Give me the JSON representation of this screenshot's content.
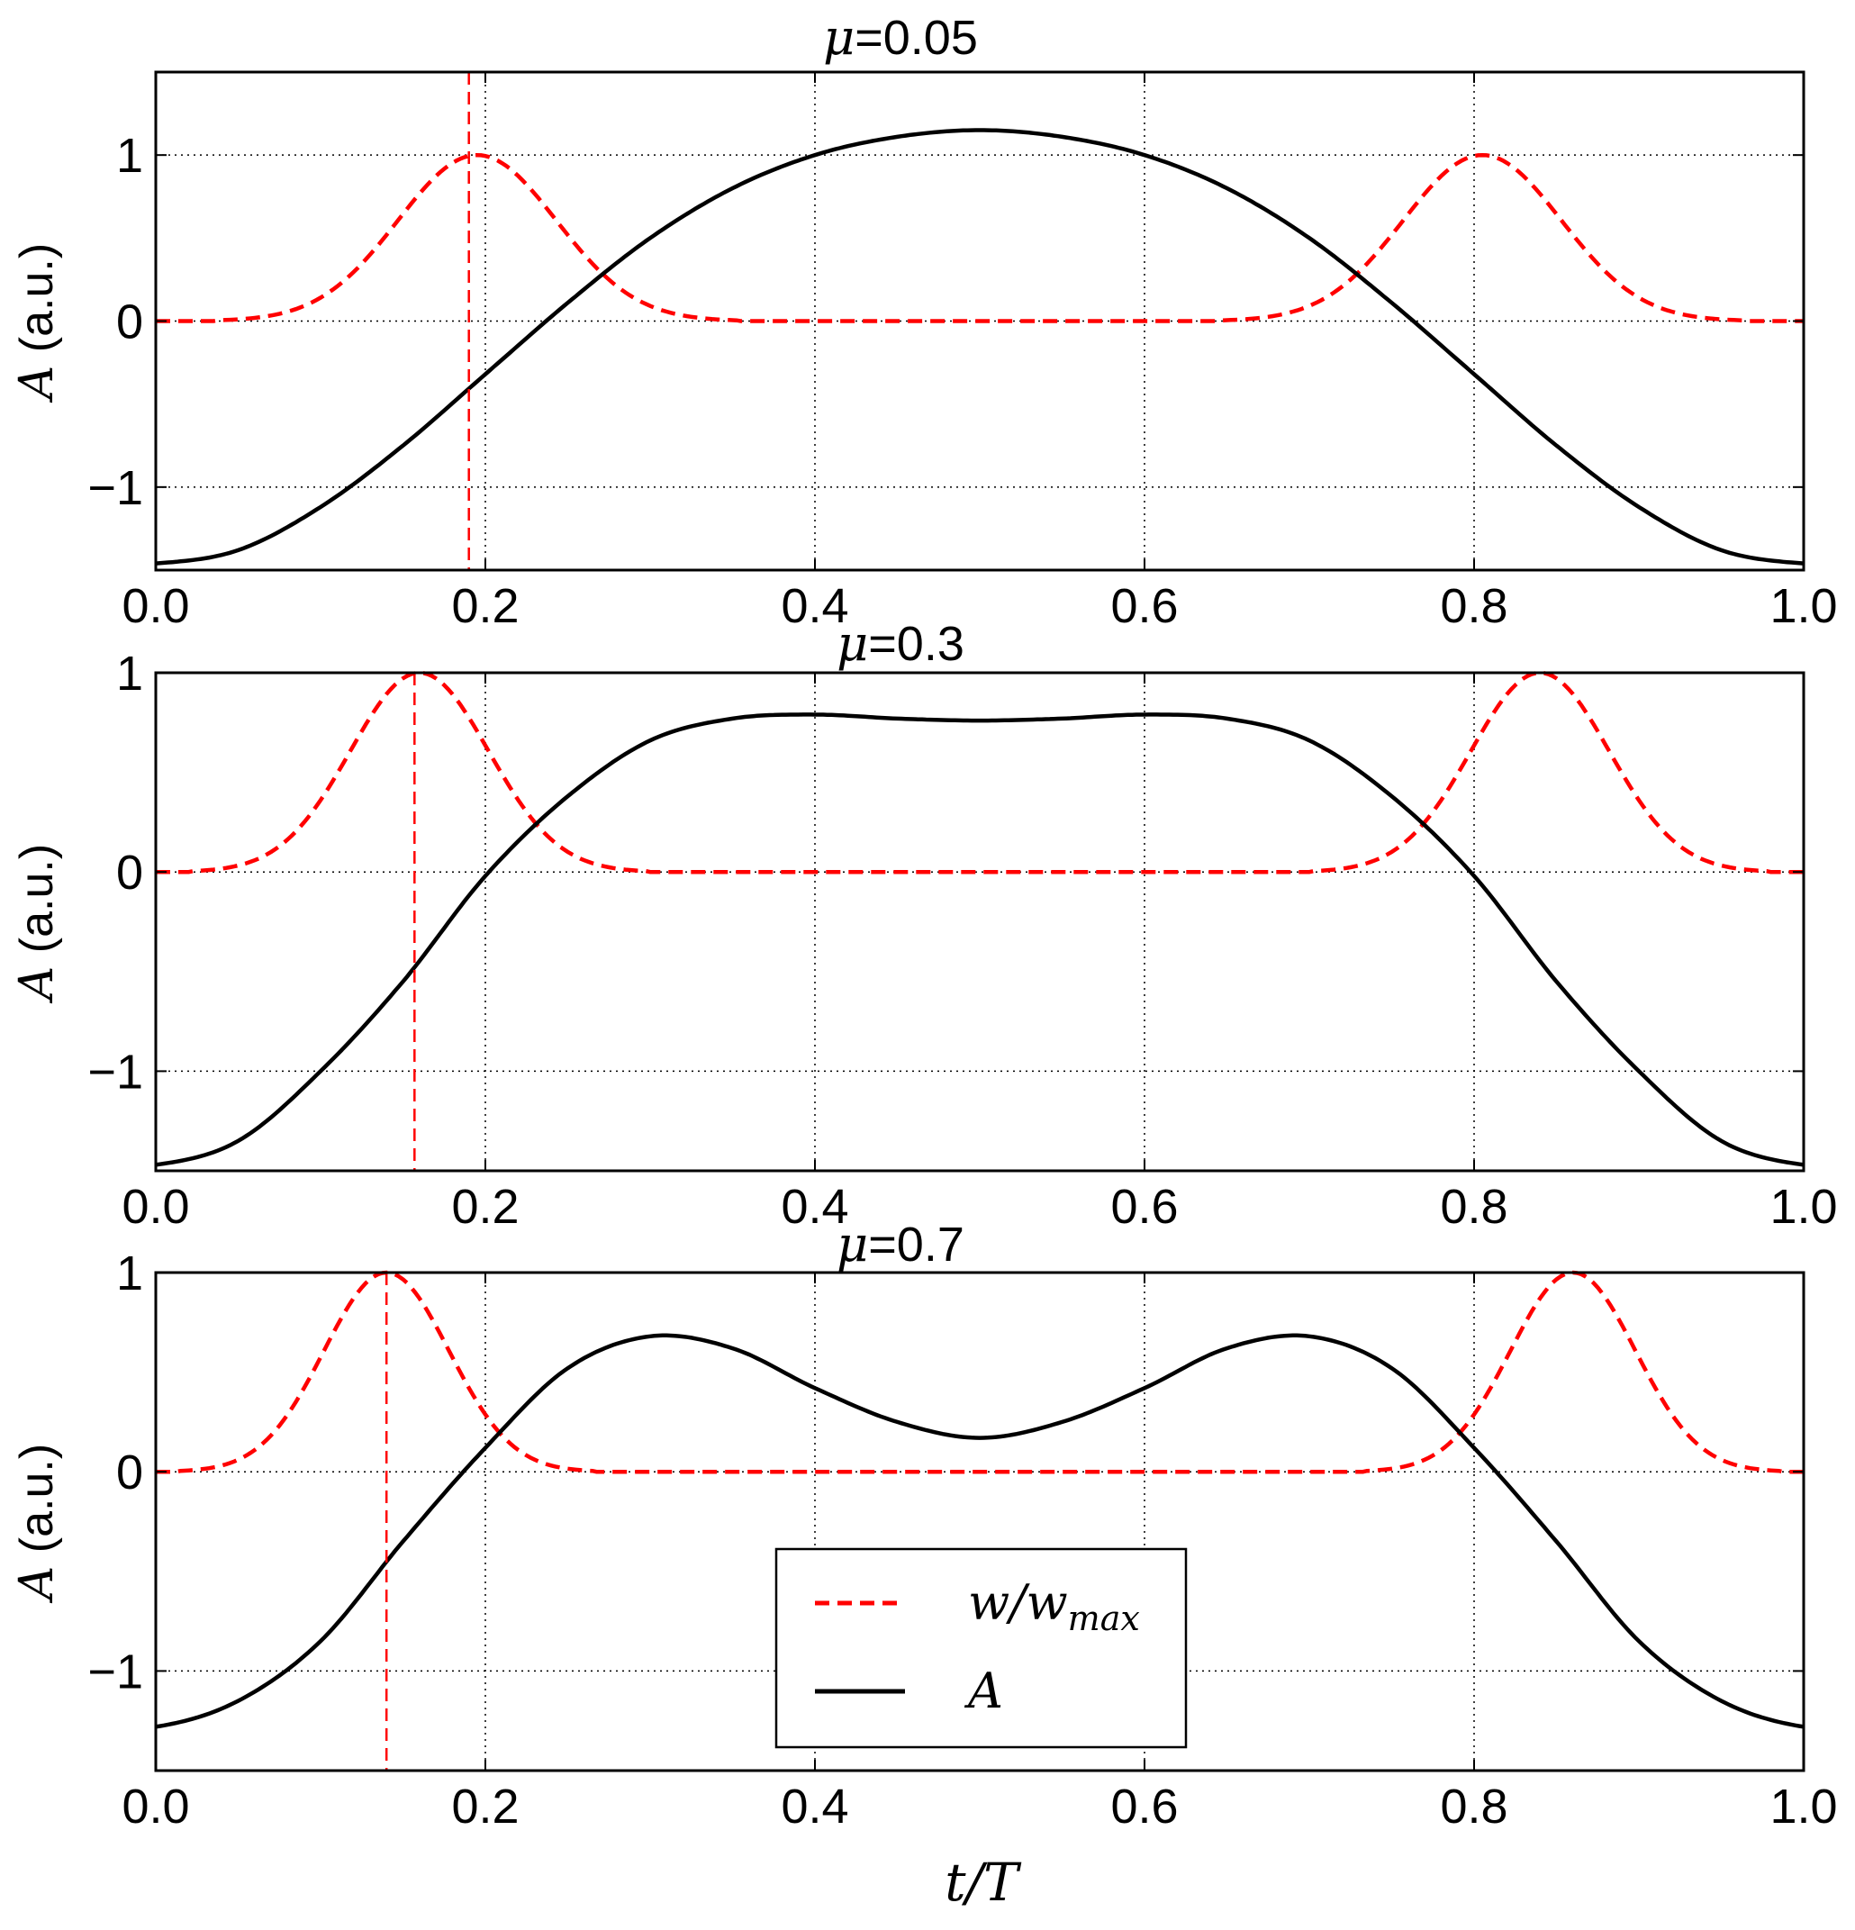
{
  "chart_data": [
    {
      "type": "line",
      "title": "μ=0.05",
      "title_symbol": "μ",
      "title_value": "=0.05",
      "mu": 0.05,
      "xlabel": "",
      "ylabel": "A (a.u.)",
      "ylabel_symbol": "A",
      "ylabel_unit": " (a.u.)",
      "xlim": [
        0.0,
        1.0
      ],
      "ylim": [
        -1.5,
        1.5
      ],
      "xticks": [
        "0.0",
        "0.2",
        "0.4",
        "0.6",
        "0.8",
        "1.0"
      ],
      "yticks": [
        "−1",
        "0",
        "1"
      ],
      "grid": true,
      "vline_x": 0.19,
      "series": [
        {
          "name": "w/w_max",
          "style": "dashed",
          "color": "#ff0000",
          "peaks": [
            0.195,
            0.805
          ],
          "peak_width": 0.048,
          "peak_height": 1.0
        },
        {
          "name": "A",
          "style": "solid",
          "color": "#000000",
          "x": [
            0.0,
            0.05,
            0.1,
            0.15,
            0.2,
            0.25,
            0.3,
            0.35,
            0.4,
            0.45,
            0.5,
            0.55,
            0.6,
            0.65,
            0.7,
            0.75,
            0.8,
            0.85,
            0.9,
            0.95,
            1.0
          ],
          "values": [
            -1.46,
            -1.38,
            -1.12,
            -0.75,
            -0.32,
            0.11,
            0.5,
            0.8,
            1.0,
            1.11,
            1.15,
            1.11,
            1.0,
            0.8,
            0.5,
            0.11,
            -0.32,
            -0.75,
            -1.12,
            -1.38,
            -1.46
          ]
        }
      ]
    },
    {
      "type": "line",
      "title": "μ=0.3",
      "title_symbol": "μ",
      "title_value": "=0.3",
      "mu": 0.3,
      "xlabel": "",
      "ylabel": "A (a.u.)",
      "ylabel_symbol": "A",
      "ylabel_unit": " (a.u.)",
      "xlim": [
        0.0,
        1.0
      ],
      "ylim": [
        -1.5,
        1.0
      ],
      "xticks": [
        "0.0",
        "0.2",
        "0.4",
        "0.6",
        "0.8",
        "1.0"
      ],
      "yticks": [
        "−1",
        "0",
        "1"
      ],
      "grid": true,
      "vline_x": 0.157,
      "series": [
        {
          "name": "w/w_max",
          "style": "dashed",
          "color": "#ff0000",
          "peaks": [
            0.16,
            0.84
          ],
          "peak_width": 0.042,
          "peak_height": 1.0
        },
        {
          "name": "A",
          "style": "solid",
          "color": "#000000",
          "x": [
            0.0,
            0.05,
            0.1,
            0.15,
            0.2,
            0.25,
            0.3,
            0.35,
            0.4,
            0.45,
            0.5,
            0.55,
            0.6,
            0.65,
            0.7,
            0.75,
            0.8,
            0.85,
            0.9,
            0.95,
            1.0
          ],
          "values": [
            -1.47,
            -1.35,
            -1.0,
            -0.55,
            -0.02,
            0.38,
            0.66,
            0.77,
            0.79,
            0.77,
            0.76,
            0.77,
            0.79,
            0.77,
            0.66,
            0.38,
            -0.02,
            -0.55,
            -1.0,
            -1.35,
            -1.47
          ]
        }
      ]
    },
    {
      "type": "line",
      "title": "μ=0.7",
      "title_symbol": "μ",
      "title_value": "=0.7",
      "mu": 0.7,
      "xlabel": "t/T",
      "ylabel": "A (a.u.)",
      "ylabel_symbol": "A",
      "ylabel_unit": " (a.u.)",
      "xlim": [
        0.0,
        1.0
      ],
      "ylim": [
        -1.5,
        1.0
      ],
      "xticks": [
        "0.0",
        "0.2",
        "0.4",
        "0.6",
        "0.8",
        "1.0"
      ],
      "yticks": [
        "−1",
        "0",
        "1"
      ],
      "grid": true,
      "vline_x": 0.14,
      "legend": {
        "position": "lower-center",
        "entries": [
          "w/w_max",
          "A"
        ]
      },
      "series": [
        {
          "name": "w/w_max",
          "style": "dashed",
          "color": "#ff0000",
          "peaks": [
            0.14,
            0.86
          ],
          "peak_width": 0.038,
          "peak_height": 1.0
        },
        {
          "name": "A",
          "style": "solid",
          "color": "#000000",
          "x": [
            0.0,
            0.05,
            0.1,
            0.15,
            0.2,
            0.25,
            0.3,
            0.35,
            0.4,
            0.45,
            0.5,
            0.55,
            0.6,
            0.65,
            0.7,
            0.75,
            0.8,
            0.85,
            0.9,
            0.95,
            1.0
          ],
          "values": [
            -1.28,
            -1.15,
            -0.85,
            -0.35,
            0.12,
            0.52,
            0.68,
            0.62,
            0.42,
            0.25,
            0.17,
            0.25,
            0.42,
            0.62,
            0.68,
            0.52,
            0.12,
            -0.35,
            -0.85,
            -1.15,
            -1.28
          ]
        }
      ]
    }
  ],
  "legend_labels": {
    "w_main": "w",
    "w_slash": "/",
    "w_base": "w",
    "w_sub": "max",
    "a_label": "A"
  },
  "x_axis_title": {
    "t": "t",
    "slash": "/",
    "T": "T"
  }
}
